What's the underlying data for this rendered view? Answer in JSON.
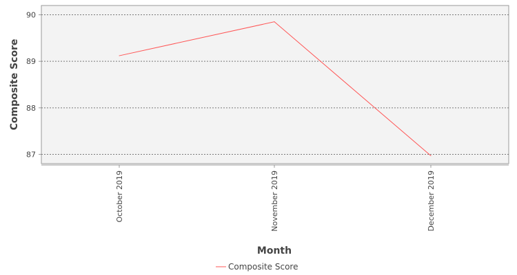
{
  "chart_data": {
    "type": "line",
    "categories": [
      "October 2019",
      "November 2019",
      "December 2019"
    ],
    "series": [
      {
        "name": "Composite Score",
        "values": [
          89.12,
          89.85,
          86.97
        ],
        "color": "#ff5555"
      }
    ],
    "xlabel": "Month",
    "ylabel": "Composite Score",
    "ylim": [
      86.8,
      90.2
    ],
    "yticks": [
      "87",
      "88",
      "89",
      "90"
    ],
    "grid": true,
    "grid_style": "dotted",
    "plot_background": "#f3f3f3",
    "legend_position": "bottom-center"
  }
}
